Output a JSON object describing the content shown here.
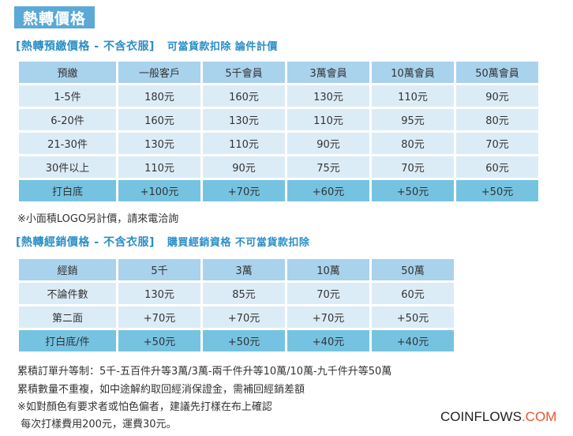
{
  "title": "熱轉價格",
  "section1": {
    "heading": "[熱轉預繳價格 - 不含衣服]",
    "subheading": "可當貨款扣除 論件計價",
    "header": [
      "預繳",
      "一般客戶",
      "5千會員",
      "3萬會員",
      "10萬會員",
      "50萬會員"
    ],
    "rows": [
      [
        "1-5件",
        "180元",
        "160元",
        "130元",
        "110元",
        "90元"
      ],
      [
        "6-20件",
        "160元",
        "130元",
        "110元",
        "95元",
        "80元"
      ],
      [
        "21-30件",
        "130元",
        "110元",
        "90元",
        "80元",
        "70元"
      ],
      [
        "30件以上",
        "110元",
        "90元",
        "75元",
        "70元",
        "60元"
      ]
    ],
    "highlight_row": [
      "打白底",
      "+100元",
      "+70元",
      "+60元",
      "+50元",
      "+50元"
    ],
    "note": "※小面積LOGO另計價，請來電洽詢"
  },
  "section2": {
    "heading": "[熱轉經銷價格 - 不含衣服]",
    "subheading": "購買經銷資格 不可當貨款扣除",
    "header": [
      "經銷",
      "5千",
      "3萬",
      "10萬",
      "50萬"
    ],
    "rows": [
      [
        "不論件數",
        "130元",
        "85元",
        "70元",
        "60元"
      ],
      [
        "第二面",
        "+70元",
        "+70元",
        "+70元",
        "+50元"
      ]
    ],
    "highlight_row": [
      "打白底/件",
      "+50元",
      "+50元",
      "+40元",
      "+40元"
    ]
  },
  "notes": [
    "累積訂單升等制：5千-五百件升等3萬/3萬-兩千件升等10萬/10萬-九千件升等50萬",
    "累積數量不重複，如中途解約取回經消保證金，需補回經銷差額",
    "※如對顏色有要求者或怕色偏者，建議先打樣在布上確認",
    " 每次打樣費用200元，運費30元。"
  ],
  "brand": {
    "main": "COINFLOWS",
    "accent": ".COM"
  },
  "colors": {
    "header": "#a9d2ec",
    "row": "#dcecf7",
    "highlight": "#76c3e1",
    "accent": "#2b8ec7"
  }
}
